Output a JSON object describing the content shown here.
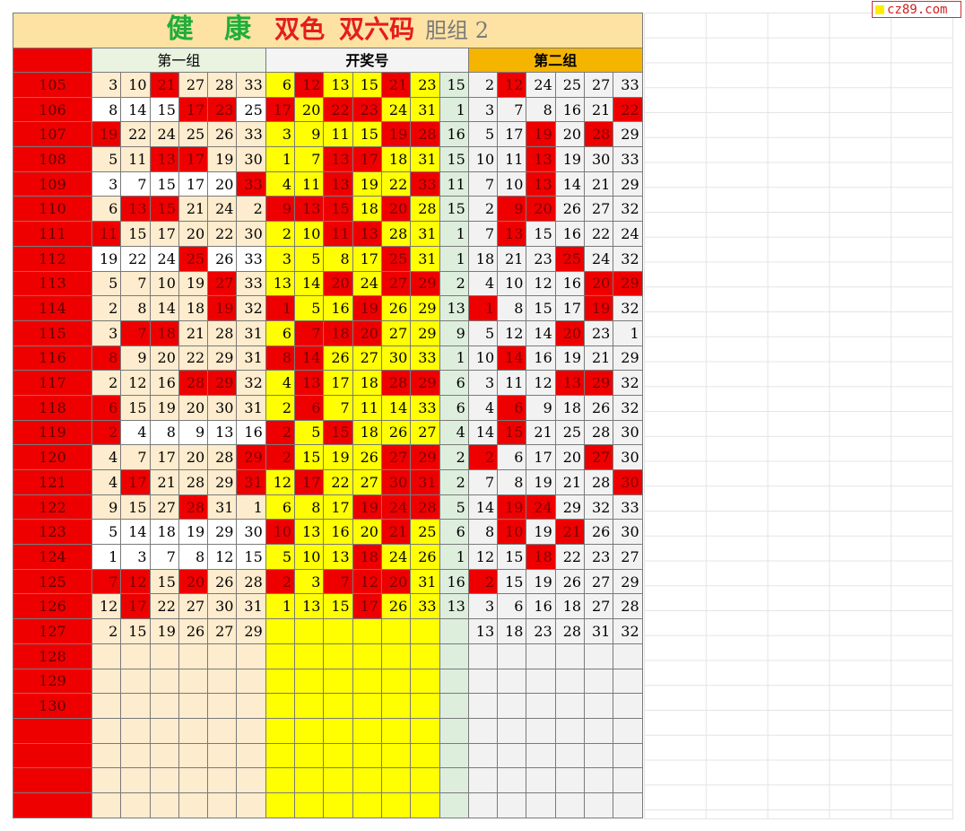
{
  "watermark": "cz89.com",
  "title": {
    "part1": "健 康",
    "part2": "双色",
    "part3": "双六码",
    "part4": "胆组 2"
  },
  "headers": {
    "group1": "第一组",
    "draw": "开奖号",
    "group2": "第二组"
  },
  "colors": {
    "red": "#ee0000",
    "yellow": "#ffff00",
    "cream": "#fdeccd",
    "orange": "#f5b400",
    "green_title": "#1fae3a"
  },
  "rows": [
    {
      "id": "105",
      "g1": [
        "3",
        "10",
        "21",
        "27",
        "28",
        "33"
      ],
      "draw": [
        "6",
        "12",
        "13",
        "15",
        "21",
        "23"
      ],
      "blue": "15",
      "g2": [
        "2",
        "12",
        "24",
        "25",
        "27",
        "33"
      ],
      "g1r": [
        2
      ],
      "dr": [
        1,
        4
      ],
      "g2r": [
        1
      ],
      "g1w": false
    },
    {
      "id": "106",
      "g1": [
        "8",
        "14",
        "15",
        "17",
        "23",
        "25"
      ],
      "draw": [
        "17",
        "20",
        "22",
        "23",
        "24",
        "31"
      ],
      "blue": "1",
      "g2": [
        "3",
        "7",
        "8",
        "16",
        "21",
        "22"
      ],
      "g1r": [
        3,
        4
      ],
      "dr": [
        0,
        2,
        3
      ],
      "g2r": [
        5
      ],
      "g1w": true
    },
    {
      "id": "107",
      "g1": [
        "19",
        "22",
        "24",
        "25",
        "26",
        "33"
      ],
      "draw": [
        "3",
        "9",
        "11",
        "15",
        "19",
        "28"
      ],
      "blue": "16",
      "g2": [
        "5",
        "17",
        "19",
        "20",
        "28",
        "29"
      ],
      "g1r": [
        0
      ],
      "dr": [
        4,
        5
      ],
      "g2r": [
        2,
        4
      ],
      "g1w": false
    },
    {
      "id": "108",
      "g1": [
        "5",
        "11",
        "13",
        "17",
        "19",
        "30"
      ],
      "draw": [
        "1",
        "7",
        "13",
        "17",
        "18",
        "31"
      ],
      "blue": "15",
      "g2": [
        "10",
        "11",
        "13",
        "19",
        "30",
        "33"
      ],
      "g1r": [
        2,
        3
      ],
      "dr": [
        2,
        3
      ],
      "g2r": [
        2
      ],
      "g1w": false
    },
    {
      "id": "109",
      "g1": [
        "3",
        "7",
        "15",
        "17",
        "20",
        "33"
      ],
      "draw": [
        "4",
        "11",
        "13",
        "19",
        "22",
        "33"
      ],
      "blue": "11",
      "g2": [
        "7",
        "10",
        "13",
        "14",
        "21",
        "29"
      ],
      "g1r": [
        5
      ],
      "dr": [
        2,
        5
      ],
      "g2r": [
        2
      ],
      "g1w": true
    },
    {
      "id": "110",
      "g1": [
        "6",
        "13",
        "15",
        "21",
        "24",
        "2"
      ],
      "draw": [
        "9",
        "13",
        "15",
        "18",
        "20",
        "28"
      ],
      "blue": "15",
      "g2": [
        "2",
        "9",
        "20",
        "26",
        "27",
        "32"
      ],
      "g1r": [
        1,
        2
      ],
      "dr": [
        0,
        1,
        2,
        4
      ],
      "g2r": [
        1,
        2
      ],
      "g1w": false
    },
    {
      "id": "111",
      "g1": [
        "11",
        "15",
        "17",
        "20",
        "22",
        "30"
      ],
      "draw": [
        "2",
        "10",
        "11",
        "13",
        "28",
        "31"
      ],
      "blue": "1",
      "g2": [
        "7",
        "13",
        "15",
        "16",
        "22",
        "24"
      ],
      "g1r": [
        0
      ],
      "dr": [
        2,
        3
      ],
      "g2r": [
        1
      ],
      "g1w": false
    },
    {
      "id": "112",
      "g1": [
        "19",
        "22",
        "24",
        "25",
        "26",
        "33"
      ],
      "draw": [
        "3",
        "5",
        "8",
        "17",
        "25",
        "31"
      ],
      "blue": "1",
      "g2": [
        "18",
        "21",
        "23",
        "25",
        "24",
        "32"
      ],
      "g1r": [
        3
      ],
      "dr": [
        4
      ],
      "g2r": [
        3
      ],
      "g1w": true
    },
    {
      "id": "113",
      "g1": [
        "5",
        "7",
        "10",
        "19",
        "27",
        "33"
      ],
      "draw": [
        "13",
        "14",
        "20",
        "24",
        "27",
        "29"
      ],
      "blue": "2",
      "g2": [
        "4",
        "10",
        "12",
        "16",
        "20",
        "29"
      ],
      "g1r": [
        4
      ],
      "dr": [
        2,
        4,
        5
      ],
      "g2r": [
        4,
        5
      ],
      "g1w": false
    },
    {
      "id": "114",
      "g1": [
        "2",
        "8",
        "14",
        "18",
        "19",
        "32"
      ],
      "draw": [
        "1",
        "5",
        "16",
        "19",
        "26",
        "29"
      ],
      "blue": "13",
      "g2": [
        "1",
        "8",
        "15",
        "17",
        "19",
        "32"
      ],
      "g1r": [
        4
      ],
      "dr": [
        0,
        3
      ],
      "g2r": [
        0,
        4
      ],
      "g1w": false
    },
    {
      "id": "115",
      "g1": [
        "3",
        "7",
        "18",
        "21",
        "28",
        "31"
      ],
      "draw": [
        "6",
        "7",
        "18",
        "20",
        "27",
        "29"
      ],
      "blue": "9",
      "g2": [
        "5",
        "12",
        "14",
        "20",
        "23",
        "1"
      ],
      "g1r": [
        1,
        2
      ],
      "dr": [
        1,
        2,
        3
      ],
      "g2r": [
        3
      ],
      "g1w": false
    },
    {
      "id": "116",
      "g1": [
        "8",
        "9",
        "20",
        "22",
        "29",
        "31"
      ],
      "draw": [
        "8",
        "14",
        "26",
        "27",
        "30",
        "33"
      ],
      "blue": "1",
      "g2": [
        "10",
        "14",
        "16",
        "19",
        "21",
        "29"
      ],
      "g1r": [
        0
      ],
      "dr": [
        0,
        1
      ],
      "g2r": [
        1
      ],
      "g1w": false
    },
    {
      "id": "117",
      "g1": [
        "2",
        "12",
        "16",
        "28",
        "29",
        "32"
      ],
      "draw": [
        "4",
        "13",
        "17",
        "18",
        "28",
        "29"
      ],
      "blue": "6",
      "g2": [
        "3",
        "11",
        "12",
        "13",
        "29",
        "32"
      ],
      "g1r": [
        3,
        4
      ],
      "dr": [
        1,
        4,
        5
      ],
      "g2r": [
        3,
        4
      ],
      "g1w": false
    },
    {
      "id": "118",
      "g1": [
        "6",
        "15",
        "19",
        "20",
        "30",
        "31"
      ],
      "draw": [
        "2",
        "6",
        "7",
        "11",
        "14",
        "33"
      ],
      "blue": "6",
      "g2": [
        "4",
        "6",
        "9",
        "18",
        "26",
        "32"
      ],
      "g1r": [
        0
      ],
      "dr": [
        1
      ],
      "g2r": [
        1
      ],
      "g1w": false
    },
    {
      "id": "119",
      "g1": [
        "2",
        "4",
        "8",
        "9",
        "13",
        "16"
      ],
      "draw": [
        "2",
        "5",
        "15",
        "18",
        "26",
        "27"
      ],
      "blue": "4",
      "g2": [
        "14",
        "15",
        "21",
        "25",
        "28",
        "30"
      ],
      "g1r": [
        0
      ],
      "dr": [
        0,
        2
      ],
      "g2r": [
        1
      ],
      "g1w": true
    },
    {
      "id": "120",
      "g1": [
        "4",
        "7",
        "17",
        "20",
        "28",
        "29"
      ],
      "draw": [
        "2",
        "15",
        "19",
        "26",
        "27",
        "29"
      ],
      "blue": "2",
      "g2": [
        "2",
        "6",
        "17",
        "20",
        "27",
        "30"
      ],
      "g1r": [
        5
      ],
      "dr": [
        0,
        4,
        5
      ],
      "g2r": [
        0,
        4
      ],
      "g1w": false
    },
    {
      "id": "121",
      "g1": [
        "4",
        "17",
        "21",
        "28",
        "29",
        "31"
      ],
      "draw": [
        "12",
        "17",
        "22",
        "27",
        "30",
        "31"
      ],
      "blue": "2",
      "g2": [
        "7",
        "8",
        "19",
        "21",
        "28",
        "30"
      ],
      "g1r": [
        1,
        5
      ],
      "dr": [
        1,
        4,
        5
      ],
      "g2r": [
        5
      ],
      "g1w": false
    },
    {
      "id": "122",
      "g1": [
        "9",
        "15",
        "27",
        "28",
        "31",
        "1"
      ],
      "draw": [
        "6",
        "8",
        "17",
        "19",
        "24",
        "28"
      ],
      "blue": "5",
      "g2": [
        "14",
        "19",
        "24",
        "29",
        "32",
        "33"
      ],
      "g1r": [
        3
      ],
      "dr": [
        3,
        4,
        5
      ],
      "g2r": [
        1,
        2
      ],
      "g1w": false
    },
    {
      "id": "123",
      "g1": [
        "5",
        "14",
        "18",
        "19",
        "29",
        "30"
      ],
      "draw": [
        "10",
        "13",
        "16",
        "20",
        "21",
        "25"
      ],
      "blue": "6",
      "g2": [
        "8",
        "10",
        "19",
        "21",
        "26",
        "30"
      ],
      "g1r": [],
      "dr": [
        0,
        4
      ],
      "g2r": [
        1,
        3
      ],
      "g1w": true
    },
    {
      "id": "124",
      "g1": [
        "1",
        "3",
        "7",
        "8",
        "12",
        "15"
      ],
      "draw": [
        "5",
        "10",
        "13",
        "18",
        "24",
        "26"
      ],
      "blue": "1",
      "g2": [
        "12",
        "15",
        "18",
        "22",
        "23",
        "27"
      ],
      "g1r": [],
      "dr": [
        3
      ],
      "g2r": [
        2
      ],
      "g1w": true
    },
    {
      "id": "125",
      "g1": [
        "7",
        "12",
        "15",
        "20",
        "26",
        "28"
      ],
      "draw": [
        "2",
        "3",
        "7",
        "12",
        "20",
        "31"
      ],
      "blue": "16",
      "g2": [
        "2",
        "15",
        "19",
        "26",
        "27",
        "29"
      ],
      "g1r": [
        0,
        1,
        3
      ],
      "dr": [
        0,
        2,
        3,
        4
      ],
      "g2r": [
        0
      ],
      "g1w": false
    },
    {
      "id": "126",
      "g1": [
        "12",
        "17",
        "22",
        "27",
        "30",
        "31"
      ],
      "draw": [
        "1",
        "13",
        "15",
        "17",
        "26",
        "33"
      ],
      "blue": "13",
      "g2": [
        "3",
        "6",
        "16",
        "18",
        "27",
        "28"
      ],
      "g1r": [
        1
      ],
      "dr": [
        3
      ],
      "g2r": [],
      "g1w": false
    },
    {
      "id": "127",
      "g1": [
        "2",
        "15",
        "19",
        "26",
        "27",
        "29"
      ],
      "draw": [
        "",
        "",
        "",
        "",
        "",
        ""
      ],
      "blue": "",
      "g2": [
        "13",
        "18",
        "23",
        "28",
        "31",
        "32"
      ],
      "g1r": [],
      "dr": [],
      "g2r": [],
      "g1w": false
    },
    {
      "id": "128",
      "g1": [
        "",
        "",
        "",
        "",
        "",
        ""
      ],
      "draw": [
        "",
        "",
        "",
        "",
        "",
        ""
      ],
      "blue": "",
      "g2": [
        "",
        "",
        "",
        "",
        "",
        ""
      ],
      "g1r": [],
      "dr": [],
      "g2r": [],
      "g1w": false
    },
    {
      "id": "129",
      "g1": [
        "",
        "",
        "",
        "",
        "",
        ""
      ],
      "draw": [
        "",
        "",
        "",
        "",
        "",
        ""
      ],
      "blue": "",
      "g2": [
        "",
        "",
        "",
        "",
        "",
        ""
      ],
      "g1r": [],
      "dr": [],
      "g2r": [],
      "g1w": false
    },
    {
      "id": "130",
      "g1": [
        "",
        "",
        "",
        "",
        "",
        ""
      ],
      "draw": [
        "",
        "",
        "",
        "",
        "",
        ""
      ],
      "blue": "",
      "g2": [
        "",
        "",
        "",
        "",
        "",
        ""
      ],
      "g1r": [],
      "dr": [],
      "g2r": [],
      "g1w": false
    },
    {
      "id": "",
      "g1": [
        "",
        "",
        "",
        "",
        "",
        ""
      ],
      "draw": [
        "",
        "",
        "",
        "",
        "",
        ""
      ],
      "blue": "",
      "g2": [
        "",
        "",
        "",
        "",
        "",
        ""
      ],
      "g1r": [],
      "dr": [],
      "g2r": [],
      "g1w": false
    },
    {
      "id": "",
      "g1": [
        "",
        "",
        "",
        "",
        "",
        ""
      ],
      "draw": [
        "",
        "",
        "",
        "",
        "",
        ""
      ],
      "blue": "",
      "g2": [
        "",
        "",
        "",
        "",
        "",
        ""
      ],
      "g1r": [],
      "dr": [],
      "g2r": [],
      "g1w": false
    },
    {
      "id": "",
      "g1": [
        "",
        "",
        "",
        "",
        "",
        ""
      ],
      "draw": [
        "",
        "",
        "",
        "",
        "",
        ""
      ],
      "blue": "",
      "g2": [
        "",
        "",
        "",
        "",
        "",
        ""
      ],
      "g1r": [],
      "dr": [],
      "g2r": [],
      "g1w": false
    },
    {
      "id": "",
      "g1": [
        "",
        "",
        "",
        "",
        "",
        ""
      ],
      "draw": [
        "",
        "",
        "",
        "",
        "",
        ""
      ],
      "blue": "",
      "g2": [
        "",
        "",
        "",
        "",
        "",
        ""
      ],
      "g1r": [],
      "dr": [],
      "g2r": [],
      "g1w": false
    }
  ]
}
